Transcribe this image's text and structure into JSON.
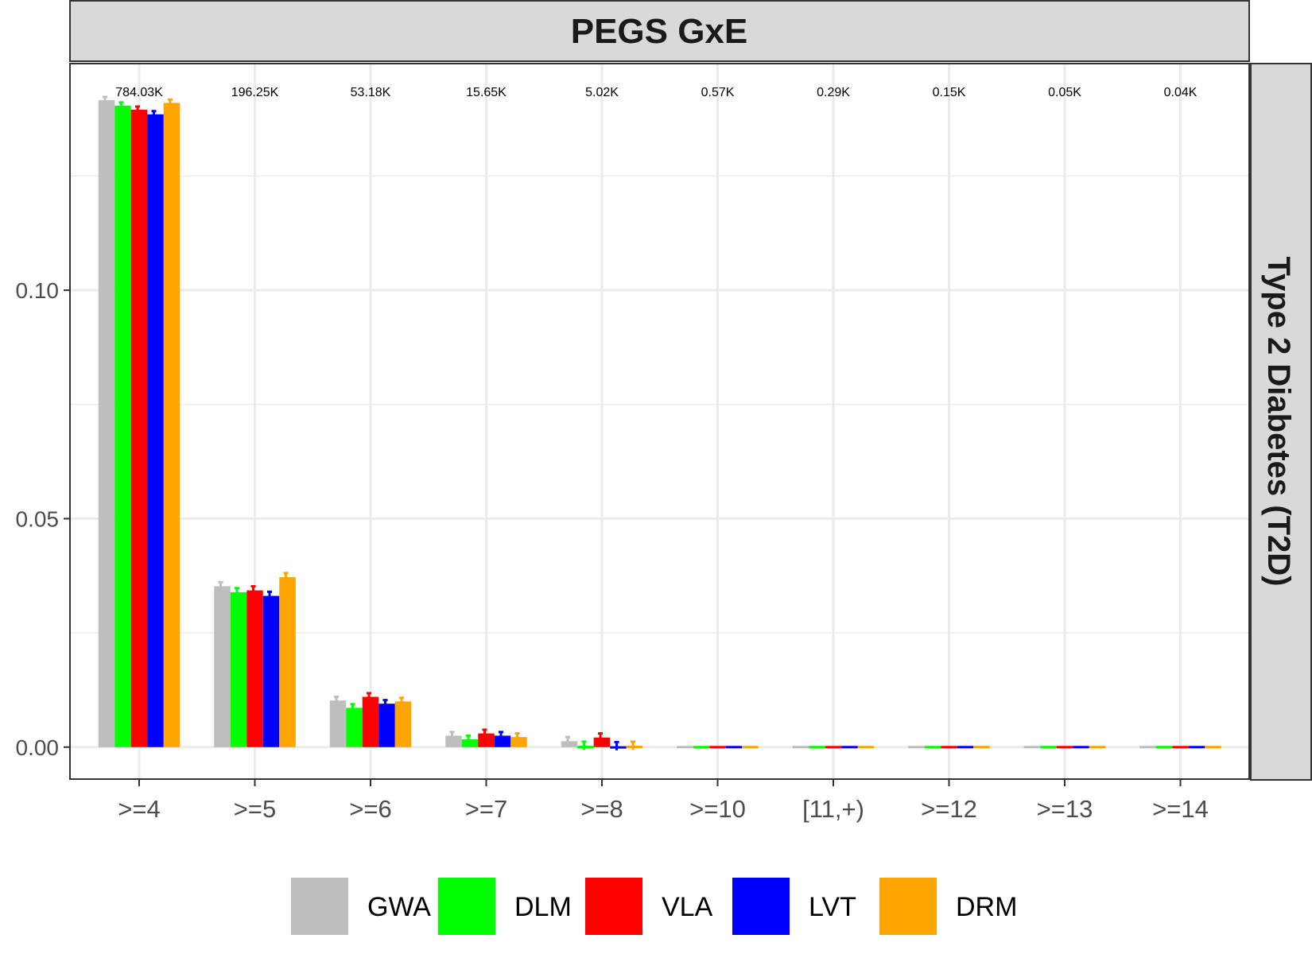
{
  "chart_data": {
    "type": "bar",
    "facet_top": "PEGS GxE",
    "facet_right": "Type 2 Diabetes (T2D)",
    "categories": [
      ">=4",
      ">=5",
      ">=6",
      ">=7",
      ">=8",
      ">=10",
      "[11,+)",
      ">=12",
      ">=13",
      ">=14"
    ],
    "counts": [
      "784.03K",
      "196.25K",
      "53.18K",
      "15.65K",
      "5.02K",
      "0.57K",
      "0.29K",
      "0.15K",
      "0.05K",
      "0.04K"
    ],
    "y_ticks": [
      "0.00",
      "0.05",
      "0.10"
    ],
    "y_tick_values": [
      0.0,
      0.05,
      0.1
    ],
    "ylim": [
      -0.007,
      0.1496
    ],
    "series": [
      {
        "name": "GWA",
        "color": "#bebebe",
        "values": [
          0.1416,
          0.0352,
          0.0102,
          0.0025,
          0.0013,
          0,
          0,
          0,
          0,
          0
        ],
        "errors": [
          0.0007,
          0.0009,
          0.0008,
          0.0008,
          0.0009,
          0,
          0,
          0,
          0,
          0
        ]
      },
      {
        "name": "DLM",
        "color": "#00ff00",
        "values": [
          0.1404,
          0.0339,
          0.0086,
          0.0017,
          0.0003,
          0,
          0,
          0,
          0,
          0
        ],
        "errors": [
          0.0007,
          0.0009,
          0.0008,
          0.0008,
          0.0009,
          0,
          0,
          0,
          0,
          0
        ]
      },
      {
        "name": "VLA",
        "color": "#ff0000",
        "values": [
          0.1395,
          0.0343,
          0.011,
          0.003,
          0.0021,
          0,
          0,
          0,
          0,
          0
        ],
        "errors": [
          0.0007,
          0.0009,
          0.0008,
          0.0008,
          0.0009,
          0,
          0,
          0,
          0,
          0
        ]
      },
      {
        "name": "LVT",
        "color": "#0000ff",
        "values": [
          0.1385,
          0.0331,
          0.0095,
          0.0025,
          0.0002,
          0,
          0,
          0,
          0,
          0
        ],
        "errors": [
          0.0007,
          0.0009,
          0.0008,
          0.0008,
          0.0009,
          0,
          0,
          0,
          0,
          0
        ]
      },
      {
        "name": "DRM",
        "color": "#ffa500",
        "values": [
          0.141,
          0.0372,
          0.01,
          0.0022,
          0.0003,
          0,
          0,
          0,
          0,
          0
        ],
        "errors": [
          0.0007,
          0.0009,
          0.0008,
          0.0008,
          0.0009,
          0,
          0,
          0,
          0,
          0
        ]
      }
    ],
    "legend_position": "bottom",
    "grid": true
  }
}
